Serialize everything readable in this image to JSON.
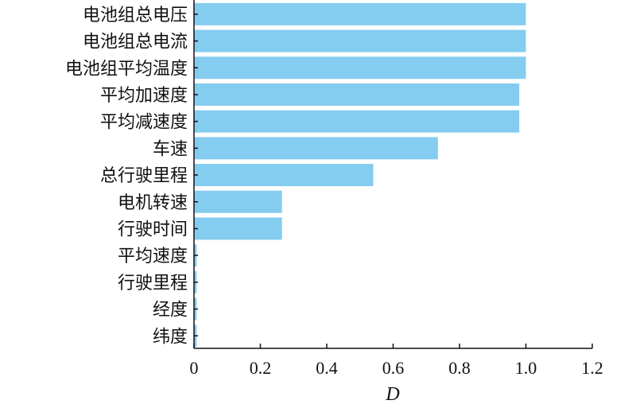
{
  "chart_data": {
    "type": "bar",
    "orientation": "horizontal",
    "categories": [
      "电池组总电压",
      "电池组总电流",
      "电池组平均温度",
      "平均加速度",
      "平均减速度",
      "车速",
      "总行驶里程",
      "电机转速",
      "行驶时间",
      "平均速度",
      "行驶里程",
      "经度",
      "纬度"
    ],
    "values": [
      1.0,
      1.0,
      1.0,
      0.98,
      0.98,
      0.735,
      0.54,
      0.265,
      0.265,
      0.008,
      0.008,
      0.008,
      0.008
    ],
    "xlabel": "D",
    "xlim": [
      0,
      1.2
    ],
    "xticks": [
      "0",
      "0.2",
      "0.4",
      "0.6",
      "0.8",
      "1.0",
      "1.2"
    ],
    "grid": false,
    "bar_color": "#84ccf0"
  }
}
